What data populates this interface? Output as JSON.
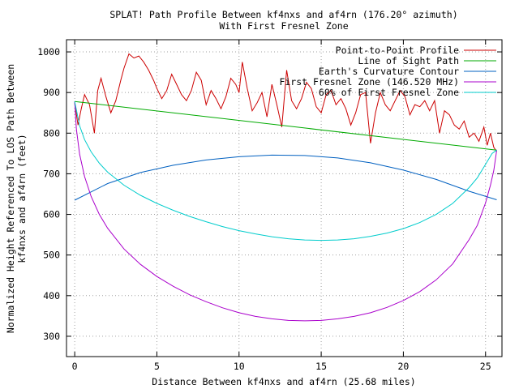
{
  "chart_data": {
    "type": "line",
    "title": "SPLAT! Path Profile Between kf4nxs and af4rn (176.20° azimuth)",
    "subtitle": "With First Fresnel Zone",
    "xlabel": "Distance Between kf4nxs and af4rn (25.68 miles)",
    "ylabel": "Normalized Height Referenced To LOS Path Between kf4nxs and af4rn (feet)",
    "xlim": [
      -0.5,
      26.0
    ],
    "ylim": [
      250,
      1030
    ],
    "x_ticks": [
      0,
      5,
      10,
      15,
      20,
      25
    ],
    "x_tick_labels": [
      "0",
      "5",
      "10",
      "15",
      "20",
      "25"
    ],
    "y_ticks": [
      300,
      400,
      500,
      600,
      700,
      800,
      900,
      1000
    ],
    "y_tick_labels": [
      "300",
      "400",
      "500",
      "600",
      "700",
      "800",
      "900",
      "1000"
    ],
    "grid": true,
    "legend_position": "top-right",
    "path_length": 25.68,
    "series": [
      {
        "name": "Point-to-Point Profile",
        "color": "#cc0000",
        "x": [
          0,
          0.2,
          0.4,
          0.6,
          0.9,
          1.2,
          1.4,
          1.6,
          1.9,
          2.2,
          2.5,
          2.8,
          3.0,
          3.3,
          3.6,
          3.9,
          4.2,
          4.5,
          4.8,
          5.0,
          5.3,
          5.6,
          5.9,
          6.2,
          6.5,
          6.8,
          7.1,
          7.4,
          7.7,
          8.0,
          8.3,
          8.6,
          8.9,
          9.2,
          9.5,
          9.8,
          10.0,
          10.2,
          10.5,
          10.8,
          11.1,
          11.4,
          11.7,
          12.0,
          12.3,
          12.6,
          12.9,
          13.2,
          13.5,
          13.8,
          14.1,
          14.4,
          14.7,
          15.0,
          15.3,
          15.6,
          15.9,
          16.2,
          16.5,
          16.8,
          17.1,
          17.4,
          17.7,
          18.0,
          18.3,
          18.6,
          18.9,
          19.2,
          19.5,
          19.8,
          20.1,
          20.4,
          20.7,
          21.0,
          21.3,
          21.6,
          21.9,
          22.2,
          22.5,
          22.8,
          23.1,
          23.4,
          23.7,
          24.0,
          24.3,
          24.6,
          24.9,
          25.1,
          25.3,
          25.5,
          25.68
        ],
        "values": [
          875,
          820,
          860,
          895,
          870,
          800,
          905,
          935,
          890,
          850,
          880,
          930,
          960,
          995,
          985,
          990,
          975,
          955,
          930,
          910,
          885,
          905,
          945,
          920,
          895,
          880,
          905,
          950,
          930,
          870,
          905,
          885,
          860,
          890,
          935,
          920,
          900,
          975,
          910,
          855,
          875,
          900,
          840,
          920,
          870,
          815,
          955,
          880,
          860,
          885,
          925,
          910,
          865,
          850,
          895,
          905,
          870,
          885,
          860,
          820,
          850,
          895,
          900,
          775,
          850,
          900,
          870,
          855,
          880,
          905,
          890,
          845,
          870,
          865,
          880,
          855,
          880,
          800,
          855,
          845,
          820,
          810,
          830,
          790,
          800,
          780,
          815,
          770,
          800,
          765,
          755
        ]
      },
      {
        "name": "Line of Sight Path",
        "color": "#00aa00",
        "x": [
          0,
          25.68
        ],
        "values": [
          878,
          758
        ]
      },
      {
        "name": "Earth's Curvature Contour",
        "color": "#0060c0",
        "x": [
          0,
          2,
          4,
          6,
          8,
          10,
          12,
          14,
          16,
          18,
          20,
          22,
          24,
          25.68
        ],
        "values": [
          635,
          676,
          703,
          721,
          734,
          742,
          746,
          745,
          739,
          727,
          709,
          686,
          657,
          636
        ]
      },
      {
        "name": "First Fresnel Zone (146.520 MHz)",
        "color": "#aa00cc",
        "x": [
          0,
          0.1,
          0.3,
          0.6,
          1,
          1.5,
          2,
          3,
          4,
          5,
          6,
          7,
          8,
          9,
          10,
          11,
          12,
          13,
          14,
          15,
          16,
          17,
          18,
          19,
          20,
          21,
          22,
          23,
          24,
          24.5,
          25,
          25.3,
          25.5,
          25.68
        ],
        "values": [
          878,
          810,
          748,
          693,
          644,
          600,
          566,
          515,
          477,
          447,
          423,
          402,
          385,
          370,
          358,
          349,
          343,
          339,
          338,
          339,
          343,
          349,
          358,
          371,
          388,
          410,
          439,
          478,
          538,
          573,
          628,
          672,
          708,
          758
        ]
      },
      {
        "name": "60% of First Fresnel Zone",
        "color": "#00cccc",
        "x": [
          0,
          0.3,
          0.6,
          1,
          1.5,
          2,
          3,
          4,
          5,
          6,
          7,
          8,
          9,
          10,
          11,
          12,
          13,
          14,
          15,
          16,
          17,
          18,
          19,
          20,
          21,
          22,
          23,
          24,
          24.5,
          25,
          25.4,
          25.68
        ],
        "values": [
          878,
          818,
          784,
          754,
          726,
          704,
          672,
          647,
          627,
          610,
          595,
          582,
          570,
          560,
          552,
          545,
          540,
          537,
          536,
          537,
          540,
          546,
          554,
          565,
          580,
          600,
          627,
          666,
          690,
          723,
          750,
          758
        ]
      }
    ]
  }
}
